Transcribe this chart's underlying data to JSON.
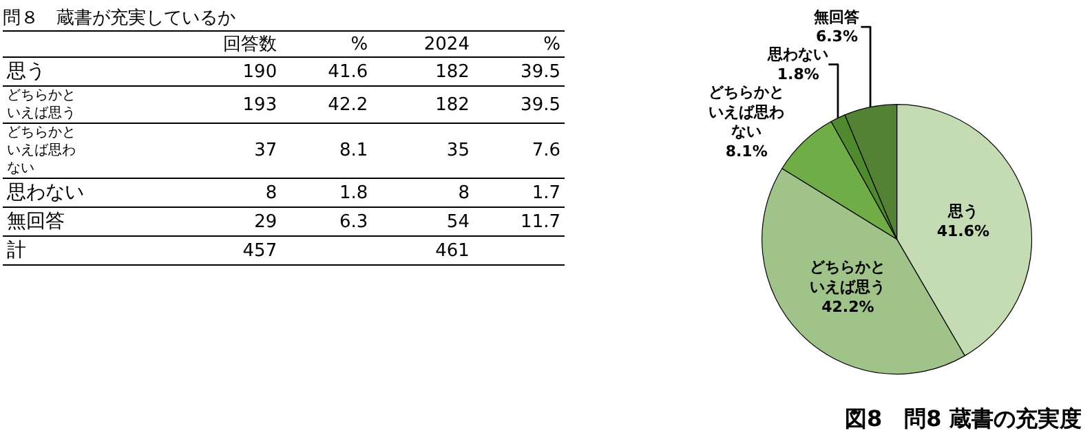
{
  "chart_data": [
    {
      "type": "other",
      "title": "問８　蔵書が充実しているか",
      "categories": [
        "思う",
        "どちらかといえば思う",
        "どちらかといえば思わない",
        "思わない",
        "無回答",
        "計"
      ],
      "series": [
        {
          "name": "回答数",
          "values": [
            190,
            193,
            37,
            8,
            29,
            457
          ]
        },
        {
          "name": "%",
          "values": [
            41.6,
            42.2,
            8.1,
            1.8,
            6.3,
            null
          ]
        },
        {
          "name": "2024",
          "values": [
            182,
            182,
            35,
            8,
            54,
            461
          ]
        },
        {
          "name": "%",
          "values": [
            39.5,
            39.5,
            7.6,
            1.7,
            11.7,
            null
          ]
        }
      ],
      "data_labels": true
    },
    {
      "type": "pie",
      "title": "図8　問8 蔵書の充実度",
      "categories": [
        "思う",
        "どちらかといえば思う",
        "どちらかといえば思わない",
        "思わない",
        "無回答"
      ],
      "values": [
        41.6,
        42.2,
        8.1,
        1.8,
        6.3
      ],
      "value_labels": [
        "41.6%",
        "42.2%",
        "8.1%",
        "1.8%",
        "6.3%"
      ],
      "colors": [
        "#c5dbb3",
        "#9fc388",
        "#70ad47",
        "#4f8a2f",
        "#548235"
      ]
    }
  ]
}
